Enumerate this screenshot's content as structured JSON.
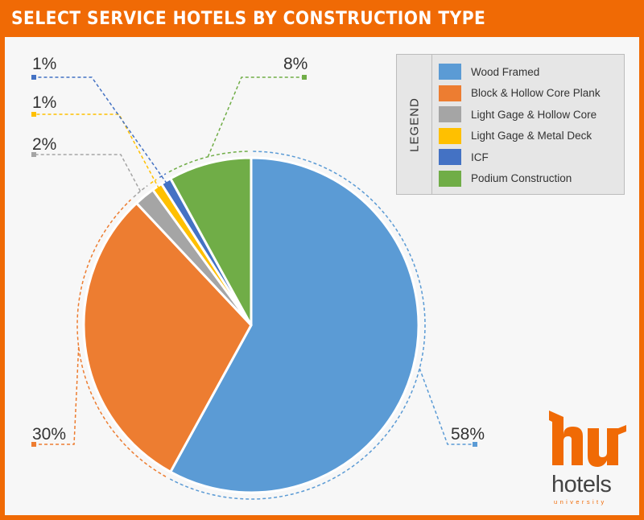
{
  "header": {
    "title": "SELECT SERVICE HOTELS BY CONSTRUCTION TYPE"
  },
  "legend": {
    "title": "LEGEND"
  },
  "chart_data": {
    "type": "pie",
    "title": "SELECT SERVICE HOTELS BY CONSTRUCTION TYPE",
    "legend_position": "top-right",
    "slices": [
      {
        "label": "Wood Framed",
        "value": 58,
        "display": "58%",
        "color": "#5b9bd5"
      },
      {
        "label": "Block & Hollow Core Plank",
        "value": 30,
        "display": "30%",
        "color": "#ed7d31"
      },
      {
        "label": "Light Gage & Hollow Core",
        "value": 2,
        "display": "2%",
        "color": "#a5a5a5"
      },
      {
        "label": "Light Gage & Metal Deck",
        "value": 1,
        "display": "1%",
        "color": "#ffc000"
      },
      {
        "label": "ICF",
        "value": 1,
        "display": "1%",
        "color": "#4472c4"
      },
      {
        "label": "Podium Construction",
        "value": 8,
        "display": "8%",
        "color": "#70ad47"
      }
    ]
  },
  "logo": {
    "mark": "hu",
    "word": "hotels",
    "sub": "university"
  }
}
